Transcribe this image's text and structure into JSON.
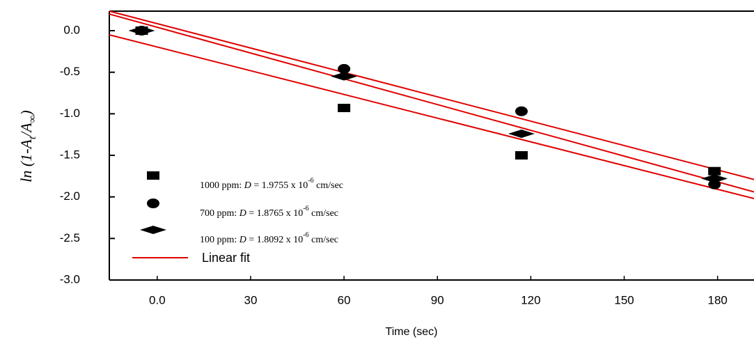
{
  "chart_data": {
    "type": "scatter",
    "x_label": "Time (sec)",
    "y_label_parts": [
      "ln (1-A",
      "t",
      "/A",
      "∞",
      ")"
    ],
    "xlim": [
      -15.4,
      191.7
    ],
    "ylim": [
      -3,
      0.235
    ],
    "xticks": [
      {
        "value": 0,
        "label": "0.0"
      },
      30,
      60,
      90,
      120,
      150,
      180
    ],
    "yticks": [
      {
        "value": 0,
        "label": "0.0"
      },
      -0.5,
      {
        "value": -1,
        "label": "-1.0"
      },
      -1.5,
      {
        "value": -2,
        "label": "-2.0"
      },
      -2.5,
      {
        "value": -3,
        "label": "-3.0"
      }
    ],
    "x": [
      -5,
      60,
      117,
      179
    ],
    "series": [
      {
        "name": "1000 ppm:",
        "marker": "square",
        "color": "#000000",
        "values": [
          0,
          -0.93,
          -1.5,
          -1.69
        ],
        "label_var": "D",
        "label_value": "= 1.9755 x 10",
        "label_exp": "-6",
        "label_unit": "cm/sec"
      },
      {
        "name": "700 ppm:",
        "marker": "circle",
        "color": "#000000",
        "values": [
          0,
          -0.46,
          -0.97,
          -1.85
        ],
        "label_var": "D",
        "label_value": "= 1.8765 x 10",
        "label_exp": "-6",
        "label_unit": "cm/sec"
      },
      {
        "name": "100 ppm:",
        "marker": "diamond",
        "color": "#000000",
        "values": [
          0,
          -0.55,
          -1.24,
          -1.78
        ],
        "label_var": "D",
        "label_value": "= 1.8092 x 10",
        "label_exp": "-6",
        "label_unit": "cm/sec"
      }
    ],
    "fit": {
      "name": "Linear fit",
      "color": "#e00000",
      "x": [
        -15.4,
        191.7
      ],
      "lines": [
        [
          0.235,
          -1.79
        ],
        [
          0.2,
          -1.94
        ],
        [
          -0.05,
          -2.02
        ]
      ]
    }
  }
}
